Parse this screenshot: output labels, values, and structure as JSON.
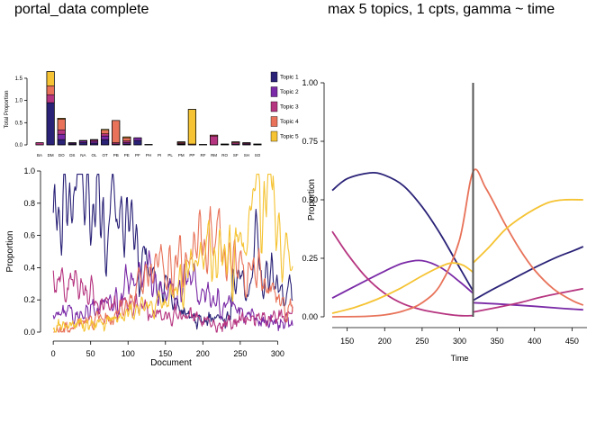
{
  "titles": {
    "left": "portal_data complete",
    "right": "max 5 topics, 1 cpts, gamma ~ time"
  },
  "colors": {
    "topics": [
      "#2a2277",
      "#7a2aa6",
      "#b63580",
      "#e8735a",
      "#f5c333"
    ],
    "changepoint": "#555555"
  },
  "chart_data": [
    {
      "type": "bar",
      "stacked": true,
      "ylabel": "Total Proportion",
      "xlabel": "",
      "ylim": [
        0,
        1.6
      ],
      "yticks": [
        "0.0",
        "0.5",
        "1.0",
        "1.5"
      ],
      "ytick_values": [
        0,
        0.5,
        1.0,
        1.5
      ],
      "categories": [
        "BA",
        "DM",
        "DO",
        "DS",
        "NA",
        "OL",
        "OT",
        "PB",
        "PE",
        "PF",
        "PH",
        "PI",
        "PL",
        "PM",
        "PP",
        "RF",
        "RM",
        "RO",
        "SF",
        "SH",
        "SO"
      ],
      "series": [
        {
          "name": "Topic 1",
          "values": [
            0.0,
            0.95,
            0.12,
            0.02,
            0.05,
            0.04,
            0.12,
            0.0,
            0.02,
            0.1,
            0.0,
            0.0,
            0.0,
            0.01,
            0.0,
            0.0,
            0.0,
            0.0,
            0.0,
            0.0,
            0.0
          ]
        },
        {
          "name": "Topic 2",
          "values": [
            0.0,
            0.0,
            0.12,
            0.02,
            0.04,
            0.04,
            0.08,
            0.02,
            0.03,
            0.06,
            0.01,
            0.0,
            0.0,
            0.01,
            0.0,
            0.0,
            0.0,
            0.01,
            0.02,
            0.02,
            0.01
          ]
        },
        {
          "name": "Topic 3",
          "values": [
            0.05,
            0.18,
            0.1,
            0.01,
            0.01,
            0.03,
            0.05,
            0.03,
            0.04,
            0.0,
            0.0,
            0.0,
            0.0,
            0.02,
            0.0,
            0.01,
            0.2,
            0.01,
            0.03,
            0.02,
            0.01
          ]
        },
        {
          "name": "Topic 4",
          "values": [
            0.0,
            0.2,
            0.24,
            0.0,
            0.0,
            0.01,
            0.08,
            0.5,
            0.07,
            0.0,
            0.0,
            0.0,
            0.0,
            0.02,
            0.02,
            0.0,
            0.02,
            0.0,
            0.02,
            0.01,
            0.0
          ]
        },
        {
          "name": "Topic 5",
          "values": [
            0.0,
            0.32,
            0.02,
            0.0,
            0.0,
            0.0,
            0.02,
            0.0,
            0.02,
            0.0,
            0.0,
            0.0,
            0.0,
            0.01,
            0.78,
            0.0,
            0.0,
            0.0,
            0.0,
            0.0,
            0.0
          ]
        }
      ],
      "legend": "right"
    },
    {
      "type": "line",
      "xlabel": "Document",
      "ylabel": "Proportion",
      "xlim": [
        -5,
        320
      ],
      "ylim": [
        0,
        1.0
      ],
      "xticks": [
        0,
        50,
        100,
        150,
        200,
        250,
        300
      ],
      "yticks": [
        "0.0",
        "0.2",
        "0.4",
        "0.6",
        "0.8",
        "1.0"
      ],
      "ytick_values": [
        0,
        0.2,
        0.4,
        0.6,
        0.8,
        1.0
      ],
      "n_documents": 320,
      "series": [
        {
          "name": "Topic 1",
          "knots": [
            [
              0,
              0.85
            ],
            [
              10,
              0.75
            ],
            [
              20,
              0.9
            ],
            [
              30,
              0.8
            ],
            [
              40,
              0.92
            ],
            [
              50,
              0.75
            ],
            [
              60,
              0.9
            ],
            [
              70,
              0.7
            ],
            [
              80,
              0.8
            ],
            [
              90,
              0.6
            ],
            [
              100,
              0.7
            ],
            [
              110,
              0.5
            ],
            [
              120,
              0.55
            ],
            [
              130,
              0.4
            ],
            [
              140,
              0.3
            ],
            [
              150,
              0.25
            ],
            [
              160,
              0.2
            ],
            [
              170,
              0.15
            ],
            [
              180,
              0.1
            ],
            [
              190,
              0.1
            ],
            [
              200,
              0.05
            ],
            [
              210,
              0.08
            ],
            [
              220,
              0.1
            ],
            [
              230,
              0.05
            ],
            [
              240,
              0.3
            ],
            [
              250,
              0.4
            ],
            [
              260,
              0.2
            ],
            [
              270,
              0.5
            ],
            [
              280,
              0.3
            ],
            [
              290,
              0.4
            ],
            [
              300,
              0.3
            ],
            [
              310,
              0.3
            ],
            [
              320,
              0.2
            ]
          ]
        },
        {
          "name": "Topic 2",
          "knots": [
            [
              0,
              0.1
            ],
            [
              20,
              0.15
            ],
            [
              40,
              0.1
            ],
            [
              60,
              0.15
            ],
            [
              80,
              0.2
            ],
            [
              100,
              0.3
            ],
            [
              120,
              0.35
            ],
            [
              140,
              0.3
            ],
            [
              160,
              0.25
            ],
            [
              180,
              0.3
            ],
            [
              200,
              0.25
            ],
            [
              220,
              0.2
            ],
            [
              240,
              0.15
            ],
            [
              260,
              0.1
            ],
            [
              280,
              0.08
            ],
            [
              300,
              0.05
            ],
            [
              320,
              0.05
            ]
          ]
        },
        {
          "name": "Topic 3",
          "knots": [
            [
              0,
              0.35
            ],
            [
              20,
              0.3
            ],
            [
              40,
              0.25
            ],
            [
              60,
              0.2
            ],
            [
              80,
              0.18
            ],
            [
              100,
              0.15
            ],
            [
              120,
              0.15
            ],
            [
              140,
              0.12
            ],
            [
              160,
              0.1
            ],
            [
              180,
              0.1
            ],
            [
              200,
              0.08
            ],
            [
              220,
              0.05
            ],
            [
              240,
              0.05
            ],
            [
              260,
              0.08
            ],
            [
              280,
              0.1
            ],
            [
              300,
              0.1
            ],
            [
              320,
              0.1
            ]
          ]
        },
        {
          "name": "Topic 4",
          "knots": [
            [
              0,
              0.0
            ],
            [
              40,
              0.05
            ],
            [
              80,
              0.1
            ],
            [
              100,
              0.2
            ],
            [
              120,
              0.3
            ],
            [
              140,
              0.4
            ],
            [
              160,
              0.45
            ],
            [
              180,
              0.5
            ],
            [
              200,
              0.5
            ],
            [
              220,
              0.55
            ],
            [
              240,
              0.5
            ],
            [
              260,
              0.4
            ],
            [
              280,
              0.3
            ],
            [
              300,
              0.2
            ],
            [
              320,
              0.15
            ]
          ]
        },
        {
          "name": "Topic 5",
          "knots": [
            [
              0,
              0.02
            ],
            [
              40,
              0.05
            ],
            [
              80,
              0.08
            ],
            [
              100,
              0.1
            ],
            [
              120,
              0.15
            ],
            [
              140,
              0.2
            ],
            [
              160,
              0.25
            ],
            [
              180,
              0.35
            ],
            [
              200,
              0.45
            ],
            [
              220,
              0.5
            ],
            [
              240,
              0.55
            ],
            [
              260,
              0.6
            ],
            [
              270,
              0.9
            ],
            [
              280,
              0.7
            ],
            [
              290,
              0.95
            ],
            [
              300,
              0.6
            ],
            [
              310,
              0.5
            ],
            [
              320,
              0.45
            ]
          ]
        }
      ]
    },
    {
      "type": "line",
      "xlabel": "Time",
      "ylabel": "Proportion",
      "xlim": [
        130,
        470
      ],
      "ylim": [
        0,
        1.0
      ],
      "xticks": [
        150,
        200,
        250,
        300,
        350,
        400,
        450
      ],
      "yticks": [
        "0.00",
        "0.25",
        "0.50",
        "0.75",
        "1.00"
      ],
      "ytick_values": [
        0,
        0.25,
        0.5,
        0.75,
        1.0
      ],
      "changepoint": 318,
      "series": [
        {
          "name": "Topic 1",
          "points": [
            [
              130,
              0.54
            ],
            [
              150,
              0.59
            ],
            [
              180,
              0.615
            ],
            [
              200,
              0.605
            ],
            [
              225,
              0.56
            ],
            [
              250,
              0.47
            ],
            [
              275,
              0.35
            ],
            [
              300,
              0.21
            ],
            [
              318,
              0.11
            ],
            [
              318,
              0.07
            ],
            [
              340,
              0.11
            ],
            [
              370,
              0.16
            ],
            [
              400,
              0.21
            ],
            [
              430,
              0.255
            ],
            [
              450,
              0.28
            ],
            [
              465,
              0.3
            ]
          ]
        },
        {
          "name": "Topic 2",
          "points": [
            [
              130,
              0.08
            ],
            [
              160,
              0.13
            ],
            [
              200,
              0.195
            ],
            [
              225,
              0.23
            ],
            [
              250,
              0.24
            ],
            [
              275,
              0.21
            ],
            [
              300,
              0.15
            ],
            [
              318,
              0.1
            ],
            [
              318,
              0.06
            ],
            [
              350,
              0.055
            ],
            [
              400,
              0.045
            ],
            [
              440,
              0.035
            ],
            [
              465,
              0.03
            ]
          ]
        },
        {
          "name": "Topic 3",
          "points": [
            [
              130,
              0.365
            ],
            [
              150,
              0.27
            ],
            [
              175,
              0.17
            ],
            [
              200,
              0.1
            ],
            [
              225,
              0.055
            ],
            [
              250,
              0.03
            ],
            [
              275,
              0.015
            ],
            [
              300,
              0.005
            ],
            [
              318,
              0.005
            ],
            [
              318,
              0.02
            ],
            [
              350,
              0.04
            ],
            [
              380,
              0.06
            ],
            [
              410,
              0.085
            ],
            [
              440,
              0.105
            ],
            [
              465,
              0.12
            ]
          ]
        },
        {
          "name": "Topic 4",
          "points": [
            [
              130,
              0.0
            ],
            [
              175,
              0.002
            ],
            [
              200,
              0.008
            ],
            [
              225,
              0.025
            ],
            [
              250,
              0.06
            ],
            [
              275,
              0.14
            ],
            [
              300,
              0.33
            ],
            [
              318,
              0.62
            ],
            [
              335,
              0.55
            ],
            [
              360,
              0.4
            ],
            [
              380,
              0.29
            ],
            [
              400,
              0.2
            ],
            [
              425,
              0.12
            ],
            [
              450,
              0.07
            ],
            [
              465,
              0.05
            ]
          ]
        },
        {
          "name": "Topic 5",
          "points": [
            [
              130,
              0.015
            ],
            [
              160,
              0.04
            ],
            [
              190,
              0.075
            ],
            [
              220,
              0.12
            ],
            [
              250,
              0.175
            ],
            [
              275,
              0.215
            ],
            [
              290,
              0.23
            ],
            [
              305,
              0.22
            ],
            [
              318,
              0.19
            ],
            [
              318,
              0.23
            ],
            [
              340,
              0.3
            ],
            [
              360,
              0.37
            ],
            [
              380,
              0.42
            ],
            [
              400,
              0.46
            ],
            [
              420,
              0.49
            ],
            [
              440,
              0.5
            ],
            [
              465,
              0.5
            ]
          ]
        }
      ]
    }
  ]
}
